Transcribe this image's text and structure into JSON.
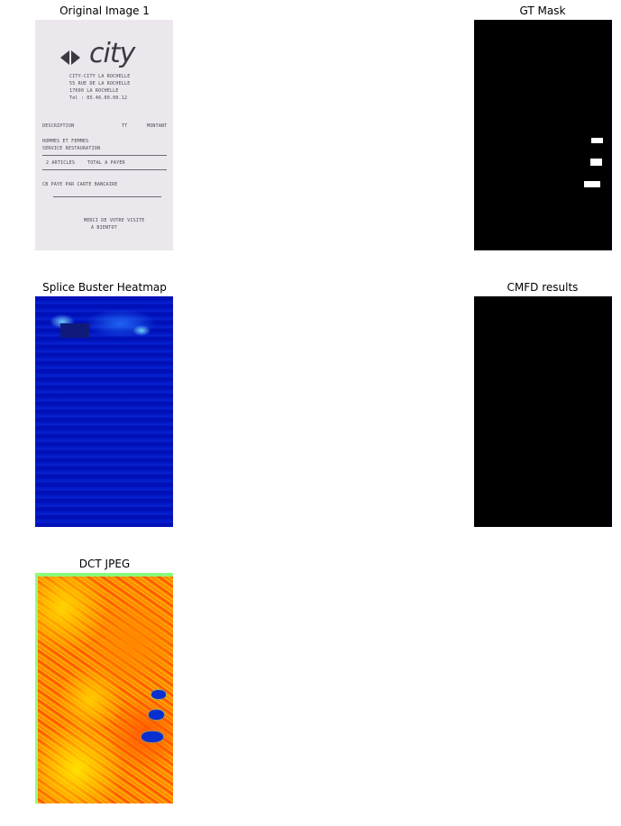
{
  "panels": [
    {
      "title": "Original Image 1"
    },
    {
      "title": "GT Mask"
    },
    {
      "title": "Splice Buster Heatmap"
    },
    {
      "title": "CMFD results"
    },
    {
      "title": "DCT JPEG"
    }
  ],
  "receipt": {
    "logo_text": "city",
    "lines": [
      "CITY-CITY LA ROCHELLE",
      "55 RUE DE LA ROCHELLE",
      "17000 LA ROCHELLE",
      "Tel : 05.46.00.00.12",
      "DESCRIPTION",
      "TT",
      "MONTANT",
      "HOMMES ET FEMMES",
      "SERVICE RESTAURATION",
      "2 ARTICLES",
      "TOTAL A PAYER",
      "CB PAYE PAR CARTE BANCAIRE",
      "MERCI DE VOTRE VISITE",
      "A BIENTOT"
    ]
  },
  "colors": {
    "mask_background": "#000000",
    "mask_foreground": "#ffffff",
    "heatmap_base": "#0012b8",
    "dct_base": "#ff7a00",
    "dct_anomaly": "#0a2fd0"
  }
}
